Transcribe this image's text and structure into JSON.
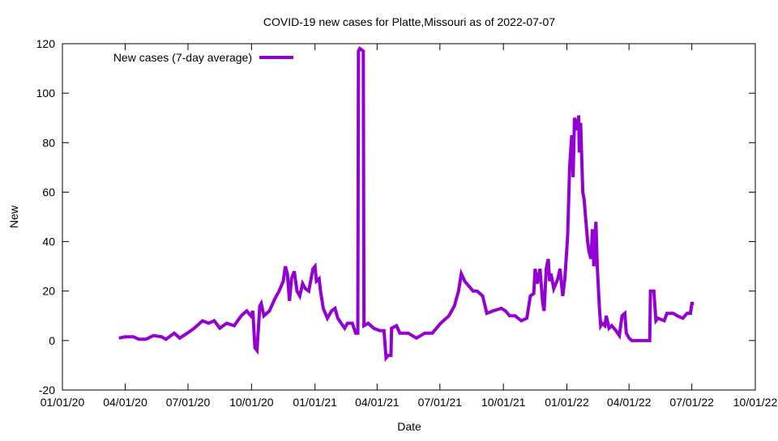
{
  "chart_data": {
    "type": "line",
    "title": "COVID-19 new cases for Platte,Missouri as of 2022-07-07",
    "xlabel": "Date",
    "ylabel": "New",
    "x_units": "days since 2020-01-01",
    "xlim": [
      0,
      1004
    ],
    "ylim": [
      -20,
      120
    ],
    "yticks": [
      -20,
      0,
      20,
      40,
      60,
      80,
      100,
      120
    ],
    "xticks": [
      {
        "day": 0,
        "label": "01/01/20"
      },
      {
        "day": 91,
        "label": "04/01/20"
      },
      {
        "day": 182,
        "label": "07/01/20"
      },
      {
        "day": 274,
        "label": "10/01/20"
      },
      {
        "day": 366,
        "label": "01/01/21"
      },
      {
        "day": 456,
        "label": "04/01/21"
      },
      {
        "day": 547,
        "label": "07/01/21"
      },
      {
        "day": 639,
        "label": "10/01/21"
      },
      {
        "day": 731,
        "label": "01/01/22"
      },
      {
        "day": 821,
        "label": "04/01/22"
      },
      {
        "day": 912,
        "label": "07/01/22"
      },
      {
        "day": 1004,
        "label": "10/01/22"
      }
    ],
    "grid": false,
    "legend_position": "top-left",
    "series": [
      {
        "name": "New cases (7-day average)",
        "color": "#9400D3",
        "points": [
          [
            82,
            1
          ],
          [
            91,
            1.5
          ],
          [
            103,
            1.5
          ],
          [
            111,
            0.5
          ],
          [
            121,
            0.5
          ],
          [
            132,
            2
          ],
          [
            144,
            1.5
          ],
          [
            150,
            0.5
          ],
          [
            162,
            3
          ],
          [
            170,
            1
          ],
          [
            181,
            3
          ],
          [
            191,
            5
          ],
          [
            203,
            8
          ],
          [
            212,
            7
          ],
          [
            220,
            8
          ],
          [
            228,
            5
          ],
          [
            238,
            7
          ],
          [
            249,
            6
          ],
          [
            259,
            10
          ],
          [
            267,
            12
          ],
          [
            273,
            10
          ],
          [
            276,
            12
          ],
          [
            279,
            -3
          ],
          [
            282,
            -4
          ],
          [
            286,
            14
          ],
          [
            288,
            15
          ],
          [
            292,
            10
          ],
          [
            300,
            12
          ],
          [
            308,
            17
          ],
          [
            314,
            20
          ],
          [
            320,
            24
          ],
          [
            323,
            30
          ],
          [
            326,
            27
          ],
          [
            329,
            16
          ],
          [
            332,
            25
          ],
          [
            336,
            28
          ],
          [
            340,
            20
          ],
          [
            344,
            18
          ],
          [
            348,
            23
          ],
          [
            352,
            21
          ],
          [
            357,
            20
          ],
          [
            363,
            29
          ],
          [
            366,
            30
          ],
          [
            368,
            24
          ],
          [
            372,
            25
          ],
          [
            374,
            20
          ],
          [
            378,
            13
          ],
          [
            384,
            9
          ],
          [
            390,
            12
          ],
          [
            395,
            13
          ],
          [
            399,
            9
          ],
          [
            404,
            7
          ],
          [
            409,
            5
          ],
          [
            413,
            7
          ],
          [
            420,
            7
          ],
          [
            425,
            3
          ],
          [
            428,
            3
          ],
          [
            429,
            117
          ],
          [
            431,
            118
          ],
          [
            436,
            117
          ],
          [
            437,
            6
          ],
          [
            443,
            7
          ],
          [
            451,
            5
          ],
          [
            460,
            4
          ],
          [
            466,
            4
          ],
          [
            469,
            -7
          ],
          [
            472,
            -6
          ],
          [
            476,
            -6
          ],
          [
            477,
            5
          ],
          [
            484,
            6
          ],
          [
            489,
            3
          ],
          [
            501,
            3
          ],
          [
            513,
            1
          ],
          [
            525,
            3
          ],
          [
            536,
            3
          ],
          [
            548,
            7
          ],
          [
            560,
            10
          ],
          [
            568,
            14
          ],
          [
            574,
            20
          ],
          [
            578,
            27
          ],
          [
            583,
            24
          ],
          [
            589,
            22
          ],
          [
            595,
            20
          ],
          [
            601,
            20
          ],
          [
            609,
            18
          ],
          [
            615,
            11
          ],
          [
            624,
            12
          ],
          [
            636,
            13
          ],
          [
            642,
            12
          ],
          [
            648,
            10
          ],
          [
            656,
            10
          ],
          [
            665,
            8
          ],
          [
            673,
            9
          ],
          [
            678,
            18
          ],
          [
            683,
            19
          ],
          [
            685,
            29
          ],
          [
            688,
            23
          ],
          [
            692,
            29
          ],
          [
            696,
            15
          ],
          [
            698,
            12
          ],
          [
            701,
            29
          ],
          [
            704,
            33
          ],
          [
            706,
            24
          ],
          [
            708,
            27
          ],
          [
            712,
            21
          ],
          [
            718,
            25
          ],
          [
            721,
            29
          ],
          [
            725,
            18
          ],
          [
            728,
            25
          ],
          [
            732,
            42
          ],
          [
            735,
            70
          ],
          [
            738,
            83
          ],
          [
            740,
            66
          ],
          [
            742,
            90
          ],
          [
            746,
            85
          ],
          [
            748,
            91
          ],
          [
            749,
            76
          ],
          [
            751,
            88
          ],
          [
            754,
            60
          ],
          [
            756,
            57
          ],
          [
            758,
            50
          ],
          [
            761,
            40
          ],
          [
            763,
            36
          ],
          [
            766,
            33
          ],
          [
            768,
            45
          ],
          [
            770,
            30
          ],
          [
            773,
            48
          ],
          [
            775,
            30
          ],
          [
            778,
            14
          ],
          [
            780,
            6
          ],
          [
            782,
            7
          ],
          [
            786,
            6
          ],
          [
            788,
            10
          ],
          [
            792,
            5
          ],
          [
            796,
            6
          ],
          [
            802,
            4
          ],
          [
            807,
            2
          ],
          [
            811,
            10
          ],
          [
            815,
            11
          ],
          [
            817,
            3
          ],
          [
            821,
            1
          ],
          [
            825,
            0
          ],
          [
            847,
            0
          ],
          [
            851,
            0
          ],
          [
            852,
            20
          ],
          [
            857,
            20
          ],
          [
            860,
            8
          ],
          [
            863,
            9
          ],
          [
            872,
            8
          ],
          [
            876,
            11
          ],
          [
            885,
            11
          ],
          [
            891,
            10
          ],
          [
            899,
            9
          ],
          [
            905,
            11
          ],
          [
            910,
            11
          ],
          [
            912,
            15
          ],
          [
            915,
            15
          ]
        ]
      }
    ]
  }
}
